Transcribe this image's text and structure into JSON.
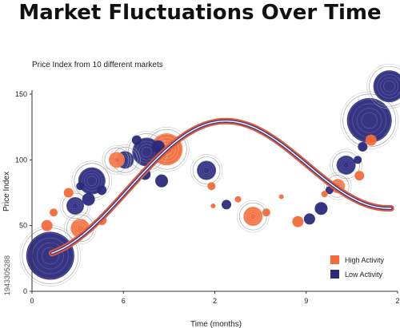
{
  "chart_data": {
    "type": "scatter",
    "title": "Market Fluctuations Over Time",
    "subtitle": "Price Index from 10 different markets",
    "xlabel": "Time (months)",
    "ylabel": "Price Index",
    "x_tick_labels": [
      "0",
      "6",
      "2",
      "9",
      "2"
    ],
    "y_ticks": [
      0,
      50,
      100,
      150
    ],
    "ylim": [
      0,
      155
    ],
    "legend": {
      "placement": "bottom-right",
      "entries": [
        "High Activity",
        "Low Activity"
      ]
    },
    "colors": {
      "High Activity": "#f26b3a",
      "Low Activity": "#2b2a7a",
      "line_outer": "#e05a3a",
      "line_inner": "#ffffff"
    },
    "grid": false,
    "stock_id": "1943305288",
    "series": [
      {
        "name": "High Activity",
        "points": [
          {
            "x": 0.9,
            "y": 50,
            "size": 7
          },
          {
            "x": 1.3,
            "y": 60,
            "size": 5
          },
          {
            "x": 2.2,
            "y": 75,
            "size": 6
          },
          {
            "x": 2.9,
            "y": 48,
            "size": 12
          },
          {
            "x": 4.2,
            "y": 54,
            "size": 6
          },
          {
            "x": 5.1,
            "y": 100,
            "size": 10
          },
          {
            "x": 8.1,
            "y": 108,
            "size": 20
          },
          {
            "x": 10.8,
            "y": 80,
            "size": 5
          },
          {
            "x": 10.9,
            "y": 65,
            "size": 3
          },
          {
            "x": 12.4,
            "y": 70,
            "size": 4
          },
          {
            "x": 13.3,
            "y": 57,
            "size": 12
          },
          {
            "x": 14.1,
            "y": 60,
            "size": 5
          },
          {
            "x": 15.0,
            "y": 72,
            "size": 3
          },
          {
            "x": 16.0,
            "y": 53,
            "size": 7
          },
          {
            "x": 17.6,
            "y": 74,
            "size": 4
          },
          {
            "x": 18.4,
            "y": 80,
            "size": 9
          },
          {
            "x": 19.7,
            "y": 88,
            "size": 6
          },
          {
            "x": 20.4,
            "y": 115,
            "size": 7
          }
        ]
      },
      {
        "name": "Low Activity",
        "points": [
          {
            "x": 1.1,
            "y": 27,
            "size": 30
          },
          {
            "x": 2.6,
            "y": 65,
            "size": 11
          },
          {
            "x": 2.9,
            "y": 80,
            "size": 5
          },
          {
            "x": 3.4,
            "y": 70,
            "size": 8
          },
          {
            "x": 3.6,
            "y": 84,
            "size": 17
          },
          {
            "x": 4.2,
            "y": 77,
            "size": 6
          },
          {
            "x": 5.6,
            "y": 100,
            "size": 11
          },
          {
            "x": 6.9,
            "y": 106,
            "size": 18
          },
          {
            "x": 6.8,
            "y": 89,
            "size": 7
          },
          {
            "x": 7.6,
            "y": 110,
            "size": 8
          },
          {
            "x": 7.8,
            "y": 84,
            "size": 8
          },
          {
            "x": 6.3,
            "y": 115,
            "size": 6
          },
          {
            "x": 10.5,
            "y": 92,
            "size": 12
          },
          {
            "x": 11.7,
            "y": 66,
            "size": 6
          },
          {
            "x": 16.7,
            "y": 55,
            "size": 7
          },
          {
            "x": 17.4,
            "y": 63,
            "size": 8
          },
          {
            "x": 17.9,
            "y": 77,
            "size": 5
          },
          {
            "x": 18.9,
            "y": 96,
            "size": 12
          },
          {
            "x": 19.6,
            "y": 100,
            "size": 5
          },
          {
            "x": 19.9,
            "y": 110,
            "size": 6
          },
          {
            "x": 20.3,
            "y": 130,
            "size": 28
          },
          {
            "x": 21.5,
            "y": 156,
            "size": 20
          }
        ]
      }
    ]
  }
}
